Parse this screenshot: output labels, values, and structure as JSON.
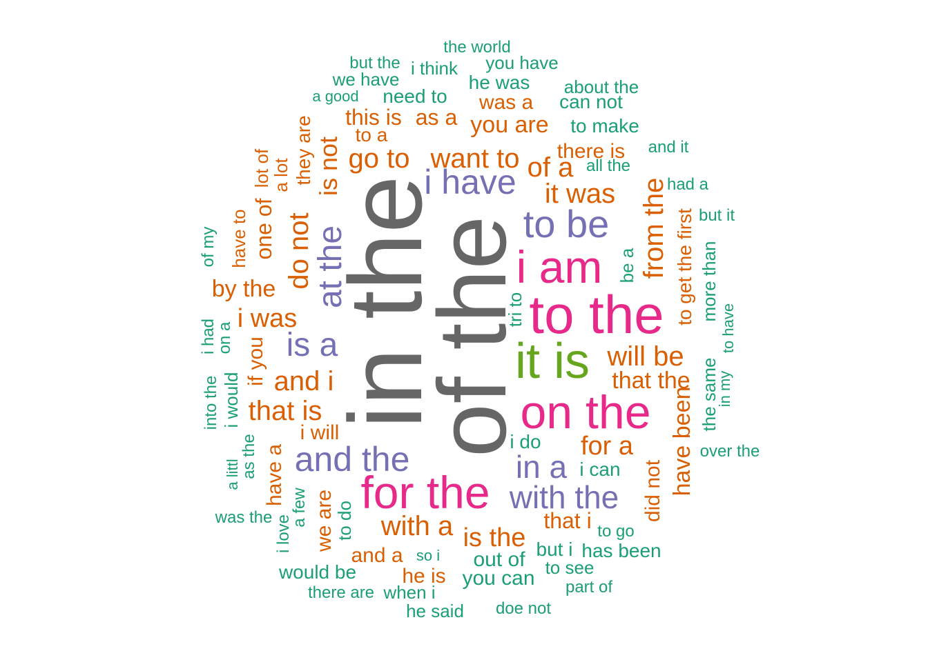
{
  "chart_data": {
    "type": "wordcloud",
    "colors": {
      "grey": "#666666",
      "pink": "#e7298a",
      "purple": "#7570b3",
      "green": "#66a61e",
      "orange": "#d95f02",
      "teal": "#1b9e77"
    },
    "words": [
      {
        "text": "in the",
        "color": "grey"
      },
      {
        "text": "of the",
        "color": "grey"
      },
      {
        "text": "to the",
        "color": "pink"
      },
      {
        "text": "on the",
        "color": "pink"
      },
      {
        "text": "for the",
        "color": "pink"
      },
      {
        "text": "i am",
        "color": "pink"
      },
      {
        "text": "it is",
        "color": "green"
      },
      {
        "text": "to be",
        "color": "purple"
      },
      {
        "text": "i have",
        "color": "purple"
      },
      {
        "text": "and the",
        "color": "purple"
      },
      {
        "text": "with the",
        "color": "purple"
      },
      {
        "text": "at the",
        "color": "purple"
      },
      {
        "text": "is a",
        "color": "purple"
      },
      {
        "text": "in a",
        "color": "purple"
      },
      {
        "text": "want to",
        "color": "orange"
      },
      {
        "text": "go to",
        "color": "orange"
      },
      {
        "text": "it was",
        "color": "orange"
      },
      {
        "text": "of a",
        "color": "orange"
      },
      {
        "text": "from the",
        "color": "orange"
      },
      {
        "text": "will be",
        "color": "orange"
      },
      {
        "text": "that the",
        "color": "orange"
      },
      {
        "text": "and i",
        "color": "orange"
      },
      {
        "text": "that is",
        "color": "orange"
      },
      {
        "text": "i was",
        "color": "orange"
      },
      {
        "text": "do not",
        "color": "orange"
      },
      {
        "text": "is not",
        "color": "orange"
      },
      {
        "text": "by the",
        "color": "orange"
      },
      {
        "text": "one of",
        "color": "orange"
      },
      {
        "text": "for a",
        "color": "orange"
      },
      {
        "text": "with a",
        "color": "orange"
      },
      {
        "text": "is the",
        "color": "orange"
      },
      {
        "text": "have been",
        "color": "orange"
      },
      {
        "text": "to get the first",
        "color": "orange"
      },
      {
        "text": "did not",
        "color": "orange"
      },
      {
        "text": "that i",
        "color": "orange"
      },
      {
        "text": "you are",
        "color": "orange"
      },
      {
        "text": "this is",
        "color": "orange"
      },
      {
        "text": "as a",
        "color": "orange"
      },
      {
        "text": "there is",
        "color": "orange"
      },
      {
        "text": "was a",
        "color": "orange"
      },
      {
        "text": "to a",
        "color": "orange"
      },
      {
        "text": "they are",
        "color": "orange"
      },
      {
        "text": "lot of",
        "color": "orange"
      },
      {
        "text": "a lot",
        "color": "orange"
      },
      {
        "text": "have to",
        "color": "orange"
      },
      {
        "text": "if you",
        "color": "orange"
      },
      {
        "text": "have a",
        "color": "orange"
      },
      {
        "text": "we are",
        "color": "orange"
      },
      {
        "text": "i will",
        "color": "orange"
      },
      {
        "text": "and a",
        "color": "orange"
      },
      {
        "text": "he is",
        "color": "orange"
      },
      {
        "text": "the world",
        "color": "teal"
      },
      {
        "text": "you have",
        "color": "teal"
      },
      {
        "text": "but the",
        "color": "teal"
      },
      {
        "text": "i think",
        "color": "teal"
      },
      {
        "text": "we have",
        "color": "teal"
      },
      {
        "text": "he was",
        "color": "teal"
      },
      {
        "text": "about the",
        "color": "teal"
      },
      {
        "text": "a good",
        "color": "teal"
      },
      {
        "text": "need to",
        "color": "teal"
      },
      {
        "text": "can not",
        "color": "teal"
      },
      {
        "text": "to make",
        "color": "teal"
      },
      {
        "text": "and it",
        "color": "teal"
      },
      {
        "text": "all the",
        "color": "teal"
      },
      {
        "text": "had a",
        "color": "teal"
      },
      {
        "text": "but it",
        "color": "teal"
      },
      {
        "text": "more than",
        "color": "teal"
      },
      {
        "text": "be a",
        "color": "teal"
      },
      {
        "text": "tri to",
        "color": "teal"
      },
      {
        "text": "to have",
        "color": "teal"
      },
      {
        "text": "in my",
        "color": "teal"
      },
      {
        "text": "the same",
        "color": "teal"
      },
      {
        "text": "over the",
        "color": "teal"
      },
      {
        "text": "i do",
        "color": "teal"
      },
      {
        "text": "i can",
        "color": "teal"
      },
      {
        "text": "to go",
        "color": "teal"
      },
      {
        "text": "has been",
        "color": "teal"
      },
      {
        "text": "but i",
        "color": "teal"
      },
      {
        "text": "to see",
        "color": "teal"
      },
      {
        "text": "part of",
        "color": "teal"
      },
      {
        "text": "out of",
        "color": "teal"
      },
      {
        "text": "you can",
        "color": "teal"
      },
      {
        "text": "doe not",
        "color": "teal"
      },
      {
        "text": "he said",
        "color": "teal"
      },
      {
        "text": "when i",
        "color": "teal"
      },
      {
        "text": "so i",
        "color": "teal"
      },
      {
        "text": "there are",
        "color": "teal"
      },
      {
        "text": "would be",
        "color": "teal"
      },
      {
        "text": "i love",
        "color": "teal"
      },
      {
        "text": "a few",
        "color": "teal"
      },
      {
        "text": "to do",
        "color": "teal"
      },
      {
        "text": "was the",
        "color": "teal"
      },
      {
        "text": "a littl",
        "color": "teal"
      },
      {
        "text": "as the",
        "color": "teal"
      },
      {
        "text": "into the",
        "color": "teal"
      },
      {
        "text": "i would",
        "color": "teal"
      },
      {
        "text": "i had",
        "color": "teal"
      },
      {
        "text": "on a",
        "color": "teal"
      },
      {
        "text": "of my",
        "color": "teal"
      }
    ]
  }
}
